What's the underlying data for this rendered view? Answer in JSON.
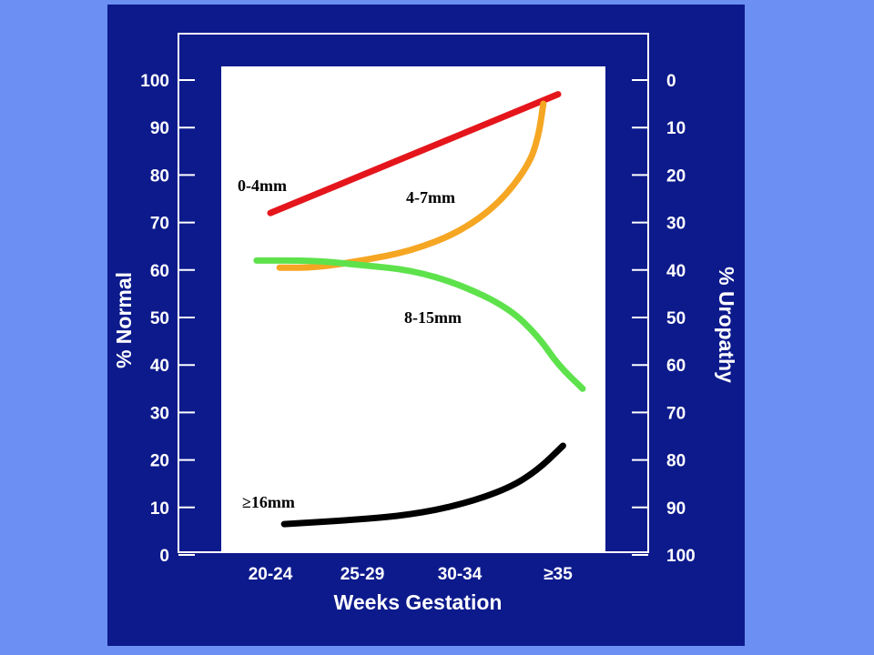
{
  "chart_data": {
    "type": "line",
    "xlabel": "Weeks Gestation",
    "ylabel": "% Normal",
    "y2label": "% Uropathy",
    "categories": [
      "20-24",
      "25-29",
      "30-34",
      "≥35"
    ],
    "ylim": [
      0,
      100
    ],
    "yticks": [
      0,
      10,
      20,
      30,
      40,
      50,
      60,
      70,
      80,
      90,
      100
    ],
    "y2ticks": [
      100,
      90,
      80,
      70,
      60,
      50,
      40,
      30,
      20,
      10,
      0
    ],
    "grid": false,
    "series": [
      {
        "name": "0-4mm",
        "color": "#e4161c",
        "points": [
          [
            0,
            72
          ],
          [
            3,
            97
          ]
        ]
      },
      {
        "name": "4-7mm",
        "color": "#f5a623",
        "points": [
          [
            0.1,
            60.5
          ],
          [
            0.5,
            60.5
          ],
          [
            1,
            62
          ],
          [
            1.5,
            64
          ],
          [
            2,
            68
          ],
          [
            2.4,
            74
          ],
          [
            2.7,
            82
          ],
          [
            2.8,
            88
          ],
          [
            2.85,
            95
          ]
        ]
      },
      {
        "name": "8-15mm",
        "color": "#5ee24c",
        "points": [
          [
            -0.15,
            62
          ],
          [
            0.5,
            62
          ],
          [
            1,
            61
          ],
          [
            1.5,
            60
          ],
          [
            2,
            57
          ],
          [
            2.5,
            52
          ],
          [
            2.8,
            46
          ],
          [
            3,
            40
          ],
          [
            3.25,
            35
          ]
        ]
      },
      {
        "name": "≥16mm",
        "color": "#000000",
        "points": [
          [
            0.15,
            6.5
          ],
          [
            1,
            7.5
          ],
          [
            1.5,
            8.5
          ],
          [
            2,
            10.5
          ],
          [
            2.5,
            14
          ],
          [
            2.8,
            18
          ],
          [
            3.05,
            23
          ]
        ]
      }
    ]
  }
}
